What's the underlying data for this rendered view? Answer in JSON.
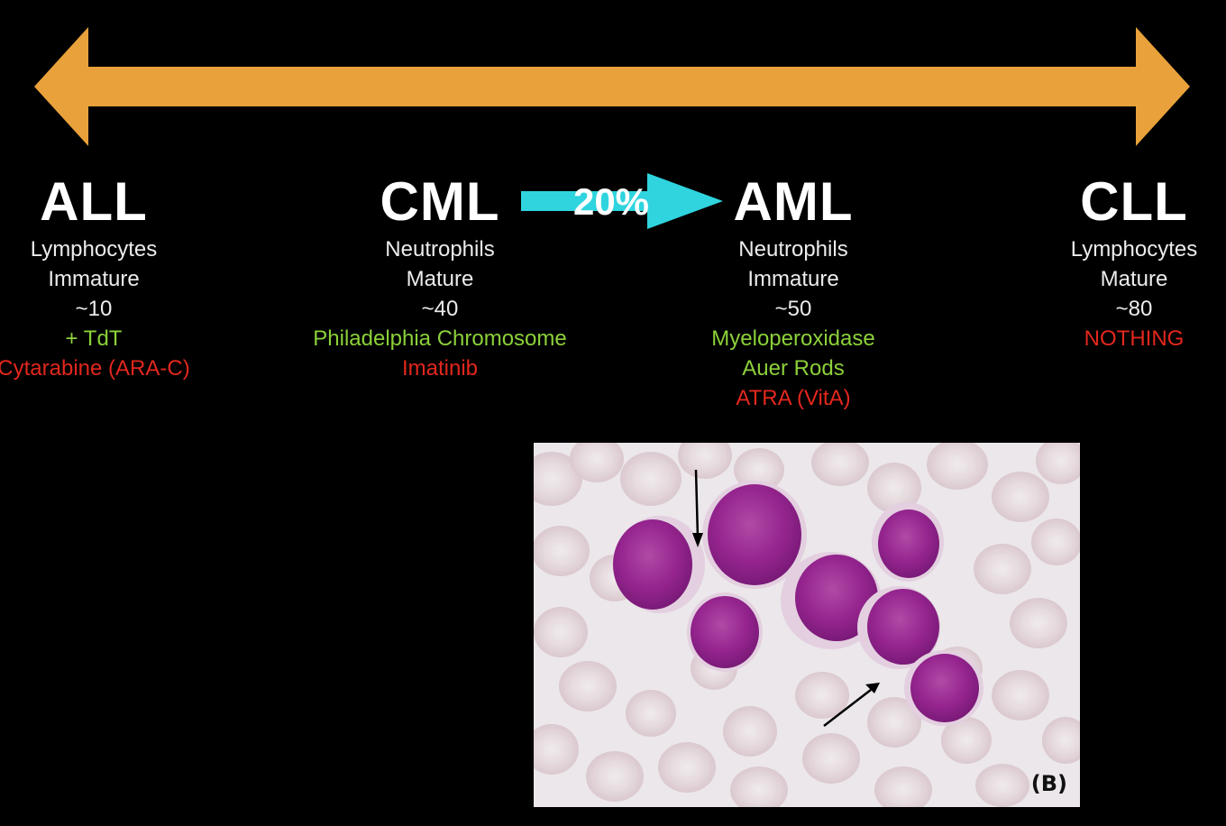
{
  "slide": {
    "background": "#000000",
    "axis_arrow": {
      "color": "#e9a13b",
      "icon": "double-headed-arrow"
    },
    "transition": {
      "label": "20%",
      "color": "#2fd4de",
      "icon": "right-arrow"
    },
    "colors": {
      "feature": "#8cd13a",
      "treatment": "#e3271d",
      "text": "#ececec"
    }
  },
  "columns": [
    {
      "title": "ALL",
      "cell_type": "Lymphocytes",
      "maturity": "Immature",
      "age": "~10",
      "markers": [
        "+ TdT"
      ],
      "treatments": [
        "Cytarabine (ARA-C)"
      ]
    },
    {
      "title": "CML",
      "cell_type": "Neutrophils",
      "maturity": "Mature",
      "age": "~40",
      "markers": [
        "Philadelphia Chromosome"
      ],
      "treatments": [
        "Imatinib"
      ]
    },
    {
      "title": "AML",
      "cell_type": "Neutrophils",
      "maturity": "Immature",
      "age": "~50",
      "markers": [
        "Myeloperoxidase",
        "Auer Rods"
      ],
      "treatments": [
        "ATRA (VitA)"
      ]
    },
    {
      "title": "CLL",
      "cell_type": "Lymphocytes",
      "maturity": "Mature",
      "age": "~80",
      "markers": [],
      "treatments": [
        "NOTHING"
      ]
    }
  ],
  "micrograph": {
    "label": "(B)"
  }
}
